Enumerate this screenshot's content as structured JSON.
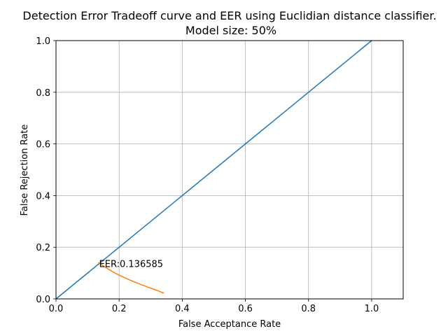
{
  "chart_data": {
    "type": "line",
    "title": "Detection Error Tradeoff curve and EER using Euclidian distance classifier.",
    "subtitle": "Model size: 50%",
    "xlabel": "False Acceptance Rate",
    "ylabel": "False Rejection Rate",
    "xlim": [
      0.0,
      1.1
    ],
    "ylim": [
      0.0,
      1.0
    ],
    "xticks": [
      "0.0",
      "0.2",
      "0.4",
      "0.6",
      "0.8",
      "1.0"
    ],
    "yticks": [
      "0.0",
      "0.2",
      "0.4",
      "0.6",
      "0.8",
      "1.0"
    ],
    "grid": true,
    "series": [
      {
        "color": "#1f77b4",
        "x": [
          0.0,
          1.0
        ],
        "y": [
          0.0,
          1.0
        ]
      },
      {
        "color": "#ff7f0e",
        "x": [
          0.133,
          0.14,
          0.15,
          0.16,
          0.17,
          0.18,
          0.19,
          0.2,
          0.21,
          0.22,
          0.23,
          0.24,
          0.25,
          0.26,
          0.27,
          0.28,
          0.29,
          0.3,
          0.31,
          0.32,
          0.33,
          0.342
        ],
        "y": [
          0.14,
          0.135,
          0.128,
          0.12,
          0.112,
          0.105,
          0.098,
          0.092,
          0.086,
          0.081,
          0.075,
          0.07,
          0.065,
          0.06,
          0.055,
          0.051,
          0.046,
          0.042,
          0.037,
          0.033,
          0.028,
          0.022
        ]
      }
    ],
    "annotations": [
      {
        "text": "EER:0.136585",
        "x": 0.136585,
        "y": 0.136585
      }
    ]
  }
}
